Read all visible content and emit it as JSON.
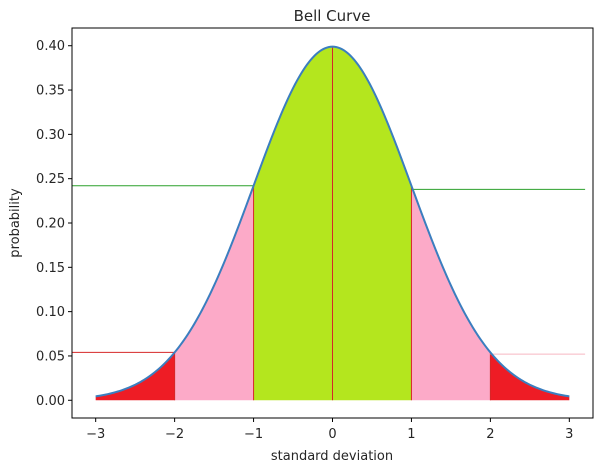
{
  "chart_data": {
    "type": "area",
    "title": "Bell Curve",
    "xlabel": "standard deviation",
    "ylabel": "probability",
    "xlim": [
      -3.3,
      3.3
    ],
    "ylim": [
      -0.02,
      0.42
    ],
    "xticks": [
      -3,
      -2,
      -1,
      0,
      1,
      2,
      3
    ],
    "xtick_labels": [
      "−3",
      "−2",
      "−1",
      "0",
      "1",
      "2",
      "3"
    ],
    "yticks": [
      0.0,
      0.05,
      0.1,
      0.15,
      0.2,
      0.25,
      0.3,
      0.35,
      0.4
    ],
    "ytick_labels": [
      "0.00",
      "0.05",
      "0.10",
      "0.15",
      "0.20",
      "0.25",
      "0.30",
      "0.35",
      "0.40"
    ],
    "curve": {
      "function": "standard normal pdf",
      "x_range": [
        -3,
        3
      ],
      "color": "#3b7ebf"
    },
    "fill_regions": [
      {
        "x_range": [
          -3,
          -2
        ],
        "color": "#ee1c25"
      },
      {
        "x_range": [
          -2,
          -1
        ],
        "color": "#fcaac8"
      },
      {
        "x_range": [
          -1,
          1
        ],
        "color": "#b4e61e"
      },
      {
        "x_range": [
          1,
          2
        ],
        "color": "#fcaac8"
      },
      {
        "x_range": [
          2,
          3
        ],
        "color": "#ee1c25"
      }
    ],
    "vertical_lines": [
      {
        "x": -2,
        "color": "#d62728"
      },
      {
        "x": -1,
        "color": "#d62728"
      },
      {
        "x": 0,
        "color": "#d62728"
      },
      {
        "x": 1,
        "color": "#d62728"
      },
      {
        "x": 2,
        "color": "#d62728"
      }
    ],
    "horizontal_lines": [
      {
        "y": 0.242,
        "x_range": [
          -3.3,
          -1
        ],
        "color": "#2ca02c"
      },
      {
        "y": 0.238,
        "x_range": [
          1,
          3.2
        ],
        "color": "#2ca02c"
      },
      {
        "y": 0.054,
        "x_range": [
          -3.3,
          -2
        ],
        "color": "#d62728"
      },
      {
        "y": 0.052,
        "x_range": [
          2,
          3.2
        ],
        "color": "#f7b6c2"
      }
    ],
    "grid": false
  }
}
